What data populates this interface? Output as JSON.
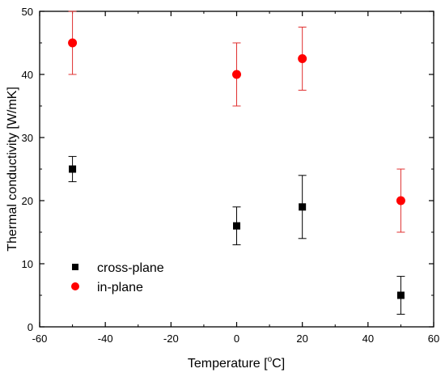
{
  "chart_data": {
    "type": "scatter",
    "xlabel_main": "Temperature [",
    "xlabel_sup": "o",
    "xlabel_end": "C]",
    "ylabel": "Thermal conductivity [W/mK]",
    "xlim": [
      -60,
      60
    ],
    "ylim": [
      0,
      50
    ],
    "xticks": [
      -60,
      -40,
      -20,
      0,
      20,
      40,
      60
    ],
    "yticks": [
      0,
      10,
      20,
      30,
      40,
      50
    ],
    "grid": false,
    "legend_position": "bottom-left",
    "series": [
      {
        "name": "cross-plane",
        "marker": "square",
        "color": "#000000",
        "errorbar_color": "#000000",
        "points": [
          {
            "x": -50,
            "y": 25,
            "err": 2
          },
          {
            "x": 0,
            "y": 16,
            "err": 3
          },
          {
            "x": 20,
            "y": 19,
            "err": 5
          },
          {
            "x": 50,
            "y": 5,
            "err": 3
          }
        ]
      },
      {
        "name": "in-plane",
        "marker": "circle",
        "color": "#ff0000",
        "errorbar_color": "#e03030",
        "points": [
          {
            "x": -50,
            "y": 45,
            "err": 5
          },
          {
            "x": 0,
            "y": 40,
            "err": 5
          },
          {
            "x": 20,
            "y": 42.5,
            "err": 5
          },
          {
            "x": 50,
            "y": 20,
            "err": 5
          }
        ]
      }
    ]
  }
}
